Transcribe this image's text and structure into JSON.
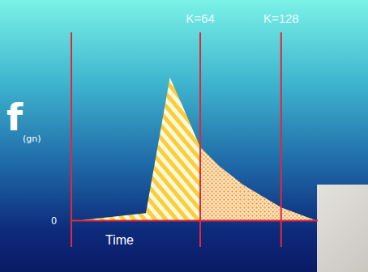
{
  "chart_data": {
    "type": "area",
    "y_label": "f",
    "y_label_subscript": "(gn)",
    "x_label": "Time",
    "x": [
      -33,
      21,
      40,
      50,
      64,
      79,
      98,
      128,
      156
    ],
    "values": [
      0,
      0.4,
      7.6,
      6.1,
      3.9,
      2.9,
      1.9,
      0.7,
      0
    ],
    "xlim": [
      -38,
      157
    ],
    "ylim": [
      -1.4,
      10
    ],
    "yticks": [
      0
    ],
    "tick_labels": "y",
    "markers": [
      {
        "value": 64,
        "label": "K=64"
      },
      {
        "value": 128,
        "label": "K=128"
      }
    ],
    "colors": [
      "#f6cf3a",
      "#f29a4a"
    ]
  }
}
